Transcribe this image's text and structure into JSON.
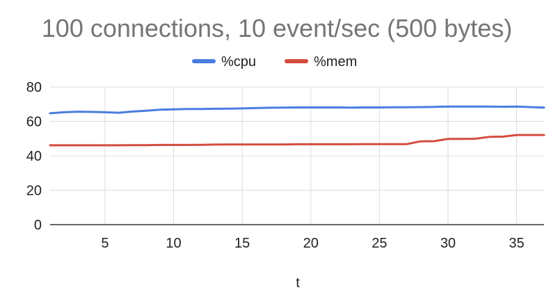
{
  "chart_data": {
    "type": "line",
    "title": "100 connections, 10 event/sec (500 bytes)",
    "xlabel": "t",
    "ylabel": "",
    "xlim": [
      1,
      37
    ],
    "ylim": [
      0,
      80
    ],
    "x_ticks": [
      5,
      10,
      15,
      20,
      25,
      30,
      35
    ],
    "y_ticks": [
      0,
      20,
      40,
      60,
      80
    ],
    "grid": true,
    "legend_position": "top",
    "x": [
      1,
      2,
      3,
      4,
      5,
      6,
      7,
      8,
      9,
      10,
      11,
      12,
      13,
      14,
      15,
      16,
      17,
      18,
      19,
      20,
      21,
      22,
      23,
      24,
      25,
      26,
      27,
      28,
      29,
      30,
      31,
      32,
      33,
      34,
      35,
      36,
      37
    ],
    "series": [
      {
        "name": "%cpu",
        "color": "#4a7de0",
        "values": [
          64.7,
          65.3,
          65.6,
          65.5,
          65.3,
          65.0,
          65.7,
          66.2,
          66.8,
          67.0,
          67.2,
          67.2,
          67.3,
          67.4,
          67.5,
          67.7,
          67.9,
          68.0,
          68.1,
          68.1,
          68.1,
          68.1,
          68.0,
          68.1,
          68.1,
          68.2,
          68.2,
          68.3,
          68.4,
          68.6,
          68.6,
          68.6,
          68.6,
          68.5,
          68.6,
          68.3,
          68.0
        ]
      },
      {
        "name": "%mem",
        "color": "#d44c3f",
        "values": [
          46.1,
          46.1,
          46.1,
          46.1,
          46.1,
          46.1,
          46.2,
          46.2,
          46.3,
          46.3,
          46.3,
          46.4,
          46.5,
          46.6,
          46.6,
          46.6,
          46.6,
          46.6,
          46.7,
          46.7,
          46.7,
          46.7,
          46.7,
          46.8,
          46.8,
          46.8,
          46.8,
          48.4,
          48.5,
          49.8,
          49.8,
          49.9,
          51.0,
          51.1,
          52.1,
          52.1,
          52.1
        ]
      }
    ]
  }
}
